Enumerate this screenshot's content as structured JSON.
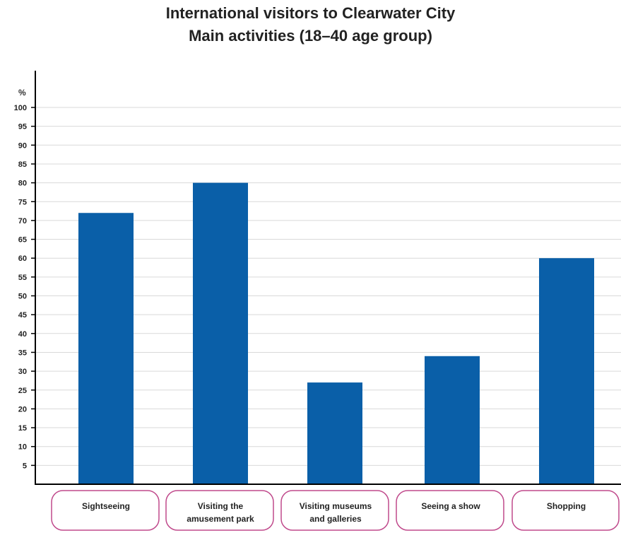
{
  "chart_data": {
    "type": "bar",
    "title": "International visitors to Clearwater City",
    "subtitle": "Main activities (18–40 age group)",
    "ylabel": "%",
    "xlabel": "",
    "ylim": [
      0,
      100
    ],
    "yticks": [
      5,
      10,
      15,
      20,
      25,
      30,
      35,
      40,
      45,
      50,
      55,
      60,
      65,
      70,
      75,
      80,
      85,
      90,
      95,
      100
    ],
    "categories": [
      [
        "Sightseeing"
      ],
      [
        "Visiting the",
        "amusement park"
      ],
      [
        "Visiting museums",
        "and galleries"
      ],
      [
        "Seeing a show"
      ],
      [
        "Shopping"
      ]
    ],
    "values": [
      72,
      80,
      27,
      34,
      60
    ],
    "grid": true,
    "legend": "none",
    "colors": {
      "bar": "#0a5fa8",
      "grid": "#d9d9d9",
      "axis": "#000000",
      "label_border": "#c04a8c"
    }
  }
}
